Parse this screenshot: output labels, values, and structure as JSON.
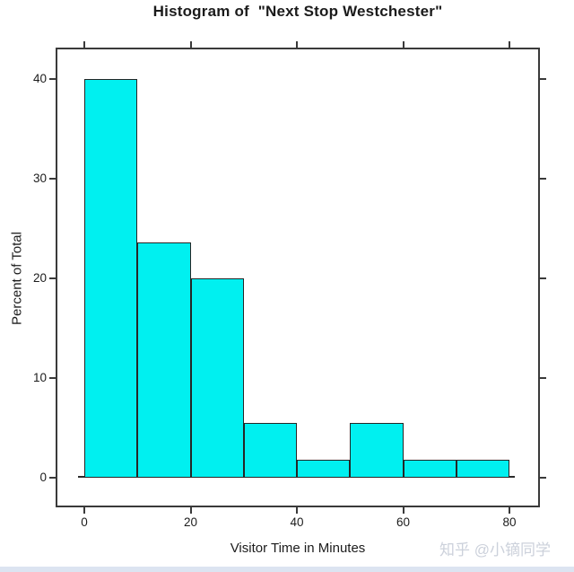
{
  "chart_data": {
    "type": "bar",
    "title": "Histogram of  \"Next Stop Westchester\"",
    "xlabel": "Visitor Time in Minutes",
    "ylabel": "Percent of Total",
    "bins": {
      "edges": [
        0,
        10,
        20,
        30,
        40,
        50,
        60,
        70,
        80
      ],
      "values_percent": [
        40,
        23.6,
        20,
        5.5,
        1.8,
        5.5,
        1.8,
        1.8
      ]
    },
    "x_ticks": [
      0,
      20,
      40,
      60,
      80
    ],
    "y_ticks": [
      0,
      10,
      20,
      30,
      40
    ],
    "xlim": [
      -5.4,
      85.7
    ],
    "ylim": [
      -3,
      43.2
    ],
    "grid": false,
    "legend": "none",
    "bar_fill": "#00F0F0",
    "bar_border": "#262626",
    "frame_color": "#3a3a3a",
    "text_color": "#1c1c1c"
  },
  "watermark": {
    "text": "知乎 @小镝同学",
    "color": "#ccd1db"
  },
  "page": {
    "background": "#ffffff",
    "bottom_band_color": "#dce4f1"
  }
}
